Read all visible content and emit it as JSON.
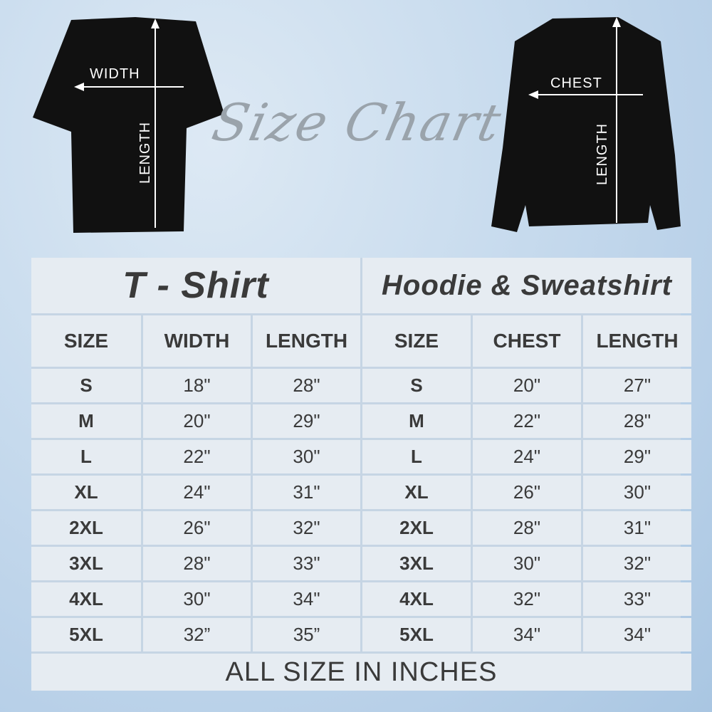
{
  "header": {
    "title": "Size Chart"
  },
  "tshirt_diagram": {
    "width_label": "WIDTH",
    "length_label": "LENGTH"
  },
  "hoodie_diagram": {
    "chest_label": "CHEST",
    "length_label": "LENGTH"
  },
  "tshirt": {
    "title": "T - Shirt",
    "columns": [
      "SIZE",
      "WIDTH",
      "LENGTH"
    ],
    "rows": [
      [
        "S",
        "18\"",
        "28\""
      ],
      [
        "M",
        "20\"",
        "29\""
      ],
      [
        "L",
        "22\"",
        "30\""
      ],
      [
        "XL",
        "24\"",
        "31\""
      ],
      [
        "2XL",
        "26\"",
        "32\""
      ],
      [
        "3XL",
        "28\"",
        "33\""
      ],
      [
        "4XL",
        "30\"",
        "34\""
      ],
      [
        "5XL",
        "32”",
        "35”"
      ]
    ]
  },
  "hoodie": {
    "title": "Hoodie & Sweatshirt",
    "columns": [
      "SIZE",
      "CHEST",
      "LENGTH"
    ],
    "rows": [
      [
        "S",
        "20\"",
        "27\""
      ],
      [
        "M",
        "22\"",
        "28\""
      ],
      [
        "L",
        "24\"",
        "29\""
      ],
      [
        "XL",
        "26\"",
        "30\""
      ],
      [
        "2XL",
        "28\"",
        "31\""
      ],
      [
        "3XL",
        "30\"",
        "32\""
      ],
      [
        "4XL",
        "32\"",
        "33\""
      ],
      [
        "5XL",
        "34\"",
        "34\""
      ]
    ]
  },
  "footer": "ALL SIZE IN INCHES",
  "colors": {
    "cell": "#e6ecf2",
    "border": "#c6d5e4",
    "text": "#3a3a3a",
    "garment": "#111111"
  }
}
